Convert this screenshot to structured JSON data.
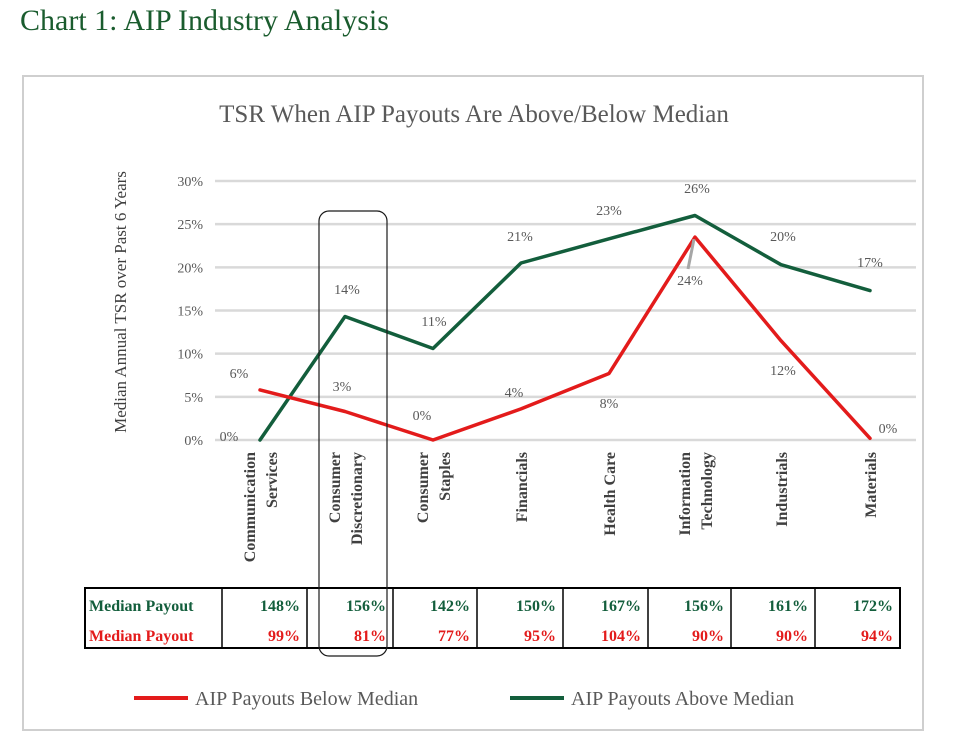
{
  "heading": "Chart 1: AIP Industry Analysis",
  "chart_data": {
    "type": "line",
    "title": "TSR When AIP Payouts Are Above/Below Median",
    "xlabel": "",
    "ylabel": "Median Annual TSR over Past 6 Years",
    "ylim": [
      0,
      30
    ],
    "yticks": [
      "0%",
      "5%",
      "10%",
      "15%",
      "20%",
      "25%",
      "30%"
    ],
    "categories": [
      [
        "Communication",
        "Services"
      ],
      [
        "Consumer",
        "Discretionary"
      ],
      [
        "Consumer",
        "Staples"
      ],
      [
        "Financials"
      ],
      [
        "Health Care"
      ],
      [
        "Information",
        "Technology"
      ],
      [
        "Industrials"
      ],
      [
        "Materials"
      ]
    ],
    "series": [
      {
        "name": "AIP Payouts Below Median",
        "color": "#e31b1b",
        "values": [
          5.8,
          3.3,
          0,
          3.6,
          7.7,
          23.5,
          11.5,
          0.2
        ],
        "labels": [
          "6%",
          "3%",
          "0%",
          "4%",
          "8%",
          "24%",
          "12%",
          "0%"
        ],
        "payout_label": "Median Payout",
        "payouts": [
          "99%",
          "81%",
          "77%",
          "95%",
          "104%",
          "90%",
          "90%",
          "94%"
        ]
      },
      {
        "name": "AIP Payouts Above Median",
        "color": "#135e3c",
        "values": [
          0,
          14.3,
          10.6,
          20.5,
          23.3,
          26.0,
          20.3,
          17.3
        ],
        "labels": [
          "0%",
          "14%",
          "11%",
          "21%",
          "23%",
          "26%",
          "20%",
          "17%"
        ],
        "payout_label": "Median Payout",
        "payouts": [
          "148%",
          "156%",
          "142%",
          "150%",
          "167%",
          "156%",
          "161%",
          "172%"
        ]
      }
    ],
    "legend": "bottom",
    "grid": true
  }
}
